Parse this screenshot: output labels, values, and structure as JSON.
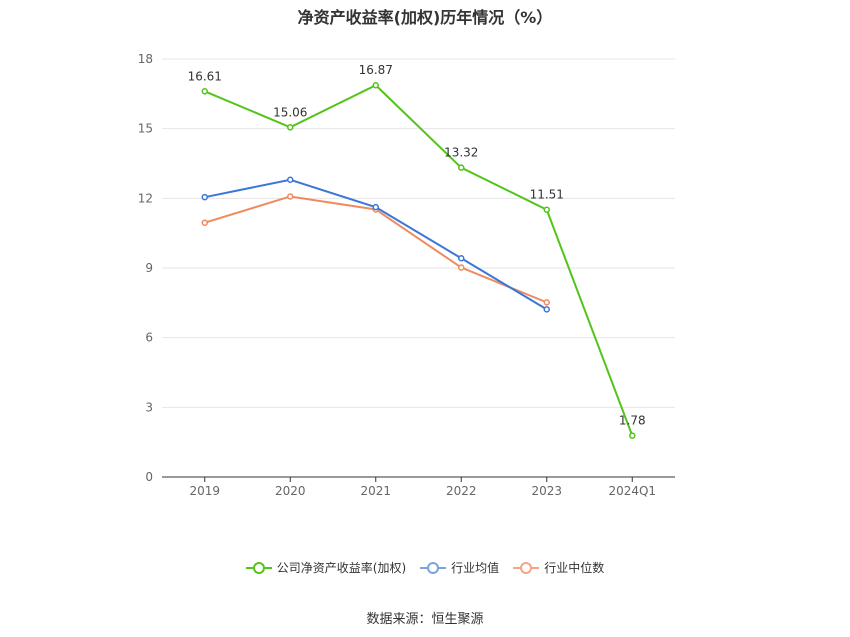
{
  "chart_data": {
    "type": "line",
    "title": "净资产收益率(加权)历年情况（%）",
    "categories": [
      "2019",
      "2020",
      "2021",
      "2022",
      "2023",
      "2024Q1"
    ],
    "ylim": [
      0,
      18
    ],
    "yticks": [
      0,
      3,
      6,
      9,
      12,
      15,
      18
    ],
    "grid": true,
    "legend_position": "bottom",
    "series": [
      {
        "name": "公司净资产收益率(加权)",
        "color": "#52c41a",
        "values": [
          16.61,
          15.06,
          16.87,
          13.32,
          11.51,
          1.78
        ],
        "labels": [
          "16.61",
          "15.06",
          "16.87",
          "13.32",
          "11.51",
          "1.78"
        ]
      },
      {
        "name": "行业均值",
        "color": "#3b77d8",
        "values": [
          12.05,
          12.8,
          11.62,
          9.42,
          7.22,
          null
        ]
      },
      {
        "name": "行业中位数",
        "color": "#f08a5d",
        "values": [
          10.95,
          12.08,
          11.52,
          9.02,
          7.52,
          null
        ]
      }
    ]
  },
  "legend": {
    "items": [
      {
        "label": "公司净资产收益率(加权)",
        "color": "#52c41a"
      },
      {
        "label": "行业均值",
        "color": "#7aa3e0"
      },
      {
        "label": "行业中位数",
        "color": "#f4a582"
      }
    ]
  },
  "source": "数据来源：恒生聚源"
}
